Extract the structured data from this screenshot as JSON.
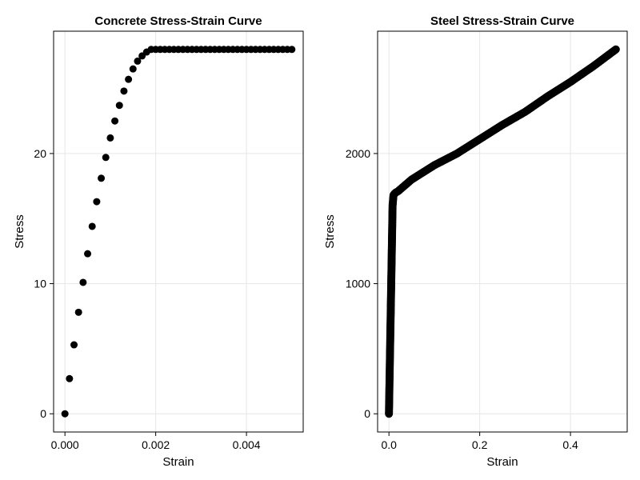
{
  "chart_data": [
    {
      "type": "scatter",
      "title": "Concrete Stress-Strain Curve",
      "xlabel": "Strain",
      "ylabel": "Stress",
      "xlim": [
        -0.00025,
        0.00525
      ],
      "ylim": [
        -1.4,
        29.4
      ],
      "xticks": [
        0.0,
        0.002,
        0.004
      ],
      "xtick_labels": [
        "0.000",
        "0.002",
        "0.004"
      ],
      "yticks": [
        0,
        10,
        20
      ],
      "ytick_labels": [
        "0",
        "10",
        "20"
      ],
      "grid": true,
      "x": [
        0.0,
        0.0001,
        0.0002,
        0.0003,
        0.0004,
        0.0005,
        0.0006,
        0.0007,
        0.0008,
        0.0009,
        0.001,
        0.0011,
        0.0012,
        0.0013,
        0.0014,
        0.0015,
        0.0016,
        0.0017,
        0.0018,
        0.0019,
        0.002,
        0.0021,
        0.0022,
        0.0023,
        0.0024,
        0.0025,
        0.0026,
        0.0027,
        0.0028,
        0.0029,
        0.003,
        0.0031,
        0.0032,
        0.0033,
        0.0034,
        0.0035,
        0.0036,
        0.0037,
        0.0038,
        0.0039,
        0.004,
        0.0041,
        0.0042,
        0.0043,
        0.0044,
        0.0045,
        0.0046,
        0.0047,
        0.0048,
        0.0049,
        0.005
      ],
      "y": [
        0.0,
        2.7,
        5.3,
        7.8,
        10.1,
        12.3,
        14.4,
        16.3,
        18.1,
        19.7,
        21.2,
        22.5,
        23.7,
        24.8,
        25.7,
        26.5,
        27.1,
        27.5,
        27.8,
        28.0,
        28.0,
        28.0,
        28.0,
        28.0,
        28.0,
        28.0,
        28.0,
        28.0,
        28.0,
        28.0,
        28.0,
        28.0,
        28.0,
        28.0,
        28.0,
        28.0,
        28.0,
        28.0,
        28.0,
        28.0,
        28.0,
        28.0,
        28.0,
        28.0,
        28.0,
        28.0,
        28.0,
        28.0,
        28.0,
        28.0,
        28.0
      ],
      "marker_color": "#000000"
    },
    {
      "type": "scatter",
      "title": "Steel Stress-Strain Curve",
      "xlabel": "Strain",
      "ylabel": "Stress",
      "xlim": [
        -0.025,
        0.525
      ],
      "ylim": [
        -140,
        2940
      ],
      "xticks": [
        0.0,
        0.2,
        0.4
      ],
      "xtick_labels": [
        "0.0",
        "0.2",
        "0.4"
      ],
      "yticks": [
        0,
        1000,
        2000
      ],
      "ytick_labels": [
        "0",
        "1000",
        "2000"
      ],
      "grid": true,
      "x": [
        0.0,
        0.001,
        0.002,
        0.003,
        0.004,
        0.005,
        0.006,
        0.007,
        0.008,
        0.01,
        0.012,
        0.015,
        0.02,
        0.05,
        0.1,
        0.15,
        0.2,
        0.25,
        0.3,
        0.35,
        0.4,
        0.45,
        0.5
      ],
      "y": [
        0,
        200,
        400,
        600,
        800,
        1000,
        1200,
        1400,
        1600,
        1680,
        1690,
        1700,
        1710,
        1800,
        1910,
        2000,
        2110,
        2220,
        2320,
        2440,
        2550,
        2670,
        2800
      ],
      "marker_color": "#000000"
    }
  ]
}
